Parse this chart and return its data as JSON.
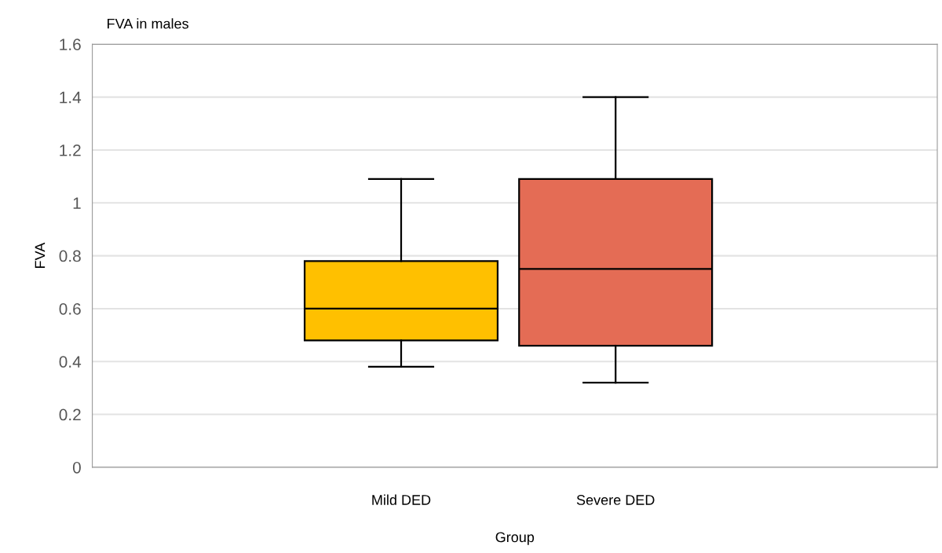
{
  "chart_data": {
    "type": "box",
    "title": "FVA in males",
    "xlabel": "Group",
    "ylabel": "FVA",
    "categories": [
      "Mild DED",
      "Severe DED"
    ],
    "colors": [
      "#ffc000",
      "#e46c55"
    ],
    "boxes": [
      {
        "low": 0.38,
        "q1": 0.48,
        "median": 0.6,
        "q3": 0.78,
        "high": 1.09
      },
      {
        "low": 0.32,
        "q1": 0.46,
        "median": 0.75,
        "q3": 1.09,
        "high": 1.4
      }
    ],
    "ylim": [
      0,
      1.6
    ],
    "yticks": [
      0,
      0.2,
      0.4,
      0.6,
      0.8,
      1,
      1.2,
      1.4,
      1.6
    ],
    "grid": "y"
  }
}
